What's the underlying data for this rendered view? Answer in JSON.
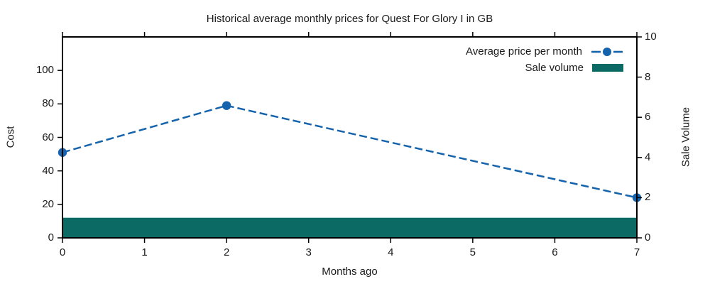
{
  "chart_data": {
    "type": "line",
    "title": "Historical average monthly prices for Quest For Glory I in GB",
    "xlabel": "Months ago",
    "ylabel_left": "Cost",
    "ylabel_right": "Sale Volume",
    "xlim": [
      0,
      7
    ],
    "ylim_left": [
      0,
      120
    ],
    "ylim_right": [
      0,
      10
    ],
    "xticks": [
      0,
      1,
      2,
      3,
      4,
      5,
      6,
      7
    ],
    "yticks_left": [
      0,
      20,
      40,
      60,
      80,
      100
    ],
    "yticks_right": [
      0,
      2,
      4,
      6,
      8,
      10
    ],
    "grid": false,
    "legend_position": "top-right-inside",
    "series": [
      {
        "name": "Average price per month",
        "type": "line",
        "axis": "left",
        "style": "dashed",
        "marker": "circle",
        "x": [
          0,
          2,
          7
        ],
        "values": [
          51,
          79,
          24
        ]
      },
      {
        "name": "Sale volume",
        "type": "bar",
        "axis": "right",
        "render": "full-width-band",
        "x": [
          0,
          1,
          2,
          3,
          4,
          5,
          6,
          7
        ],
        "values": [
          1,
          1,
          1,
          1,
          1,
          1,
          1,
          1
        ]
      }
    ],
    "colors": {
      "price_line": "#1563ac",
      "sale_volume": "#0b6a64",
      "axis": "#000000",
      "background": "#ffffff"
    }
  }
}
